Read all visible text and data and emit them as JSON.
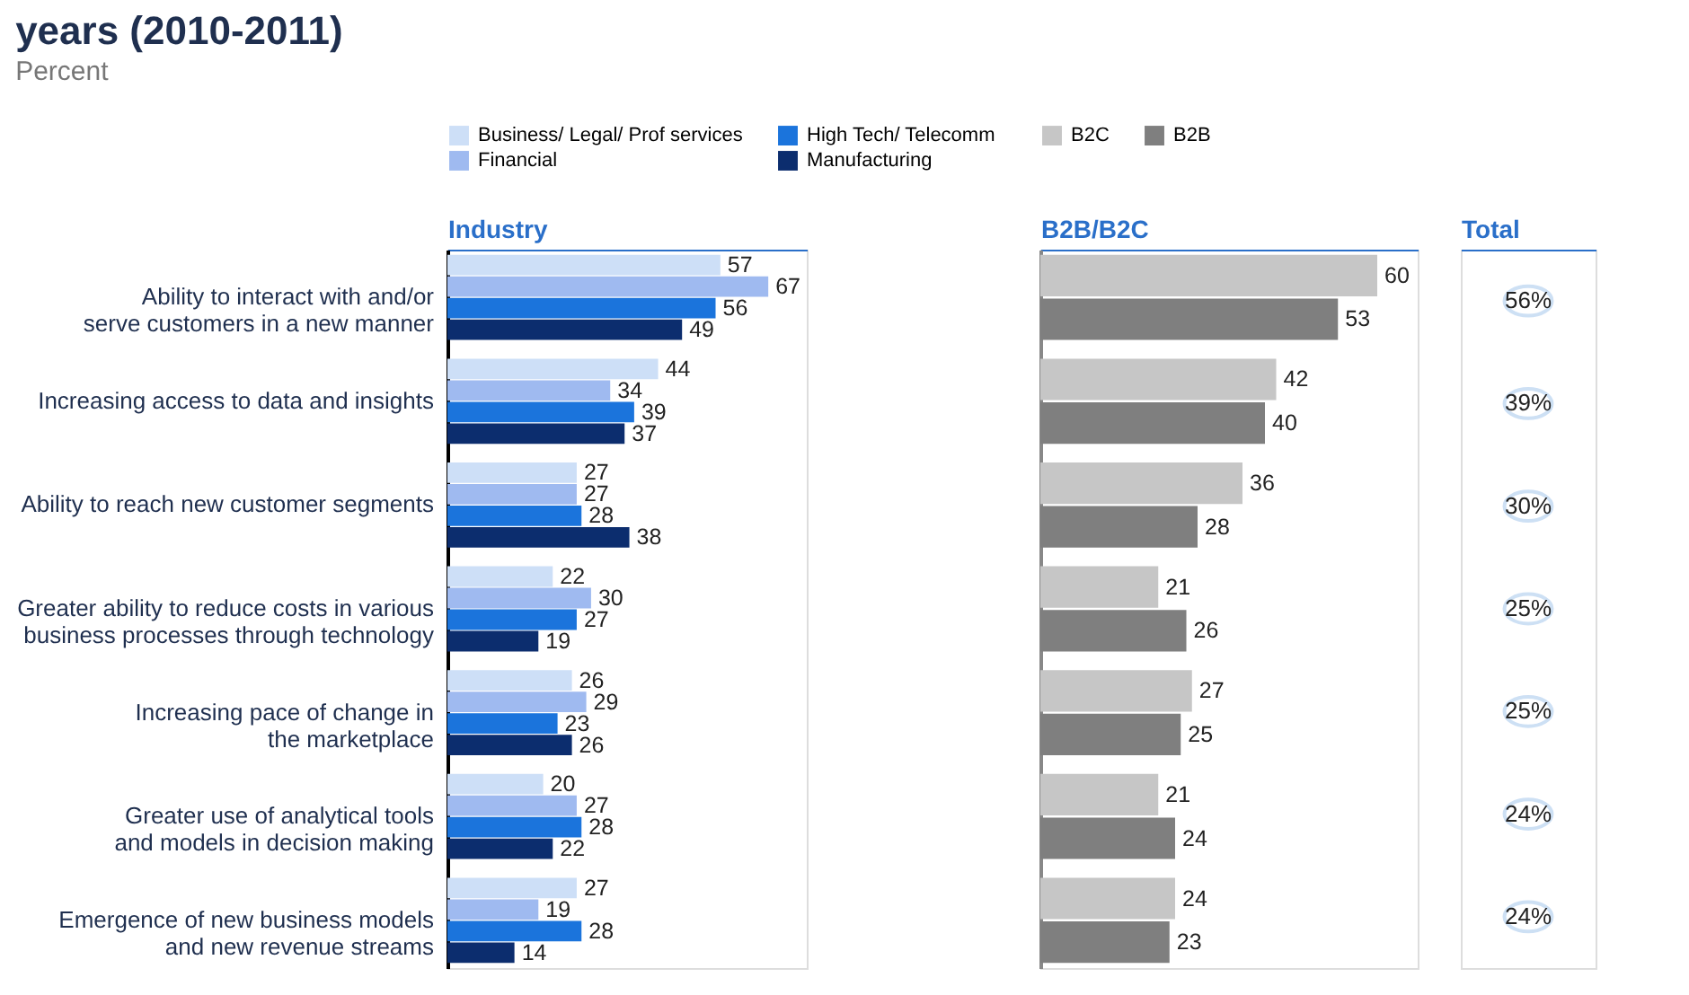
{
  "chart_data": [
    {
      "type": "bar",
      "orientation": "horizontal",
      "title": "years (2010-2011)",
      "subtitle": "Percent",
      "xlabel": "Industry",
      "tick_labels": "y",
      "legend": "top",
      "data_labels": true,
      "categories": [
        "Ability to interact with and/or\nserve customers in a new manner",
        "Increasing access to data and insights",
        "Ability to reach new customer segments",
        "Greater ability to reduce costs in various\nbusiness processes through technology",
        "Increasing pace of change in\nthe marketplace",
        "Greater use of analytical tools\nand models in decision making",
        "Emergence of new business models\nand new revenue streams"
      ],
      "series": [
        {
          "name": "Business/ Legal/ Prof services",
          "color": "#cddff7",
          "values": [
            57,
            44,
            27,
            22,
            26,
            20,
            27
          ]
        },
        {
          "name": "Financial",
          "color": "#9fbaf0",
          "values": [
            67,
            34,
            27,
            30,
            29,
            27,
            19
          ]
        },
        {
          "name": "High Tech/ Telecomm",
          "color": "#1b74dc",
          "values": [
            56,
            39,
            28,
            27,
            23,
            28,
            28
          ]
        },
        {
          "name": "Manufacturing",
          "color": "#0c2d6e",
          "values": [
            49,
            37,
            38,
            19,
            26,
            22,
            14
          ]
        }
      ]
    },
    {
      "type": "bar",
      "orientation": "horizontal",
      "xlabel": "B2B/B2C",
      "tick_labels": false,
      "legend": "top",
      "data_labels": true,
      "categories": [
        null,
        null,
        null,
        null,
        null,
        null,
        null
      ],
      "series": [
        {
          "name": "B2C",
          "color": "#c6c6c6",
          "values": [
            60,
            42,
            36,
            21,
            27,
            21,
            24
          ]
        },
        {
          "name": "B2B",
          "color": "#7f7f7f",
          "values": [
            53,
            40,
            28,
            26,
            25,
            24,
            23
          ]
        }
      ]
    },
    {
      "type": "other",
      "xlabel": "Total",
      "annotations": [
        "56%",
        "39%",
        "30%",
        "25%",
        "25%",
        "24%",
        "24%"
      ]
    }
  ]
}
